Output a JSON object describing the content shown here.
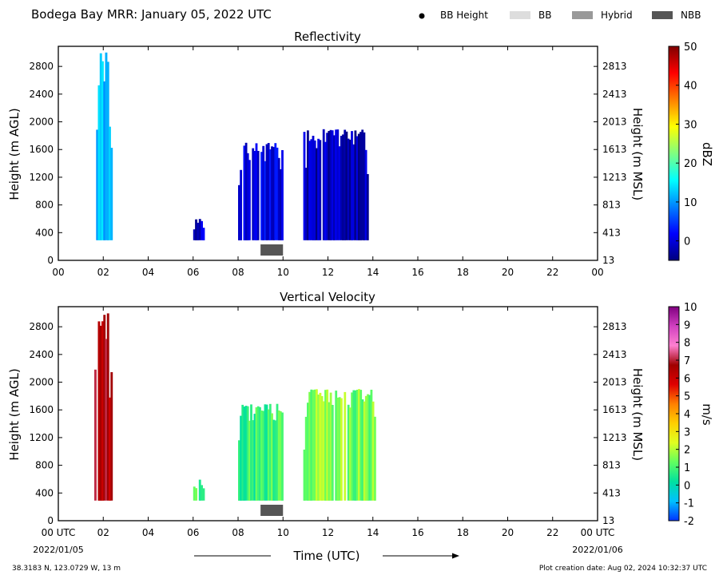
{
  "header": {
    "title": "Bodega Bay MRR:  January 05, 2022 UTC",
    "legend": [
      {
        "label": "BB Height",
        "color": "#000000",
        "kind": "dot"
      },
      {
        "label": "BB",
        "color": "#dddddd",
        "kind": "box"
      },
      {
        "label": "Hybrid",
        "color": "#999999",
        "kind": "box"
      },
      {
        "label": "NBB",
        "color": "#555555",
        "kind": "box"
      }
    ]
  },
  "footer": {
    "location": "38.3183 N, 123.0729 W, 13 m",
    "creation": "Plot creation date: Aug 02, 2024 10:32:37 UTC",
    "time_label": "Time (UTC)",
    "start_date": "2022/01/05",
    "end_date": "2022/01/06"
  },
  "chart_data": [
    {
      "type": "heatmap",
      "title": "Reflectivity",
      "xlabel": "",
      "ylabel": "Height (m AGL)",
      "ylabel_right": "Height (m MSL)",
      "xlim": [
        0,
        24
      ],
      "ylim": [
        0,
        3090
      ],
      "x_ticks": [
        "00",
        "02",
        "04",
        "06",
        "08",
        "10",
        "12",
        "14",
        "16",
        "18",
        "20",
        "22",
        "00"
      ],
      "y_ticks": [
        0,
        400,
        800,
        1200,
        1600,
        2000,
        2400,
        2800
      ],
      "y_ticks_right": [
        "13",
        "413",
        "813",
        "1213",
        "1613",
        "2013",
        "2413",
        "2813"
      ],
      "colorbar": {
        "label": "dBZ",
        "range": [
          -5,
          50
        ],
        "ticks": [
          "0",
          "10",
          "20",
          "30",
          "40",
          "50"
        ],
        "tick_values": [
          0,
          10,
          20,
          30,
          40,
          50
        ],
        "stops": [
          "#00007f",
          "#0000ff",
          "#0080ff",
          "#00ffff",
          "#80ff80",
          "#ffff00",
          "#ff8000",
          "#ff0000",
          "#7f0000"
        ]
      },
      "precip_regions": [
        {
          "x0": 1.6,
          "x1": 2.4,
          "y0": 290,
          "y1": 3000,
          "value": 12
        },
        {
          "x0": 6.0,
          "x1": 6.5,
          "y0": 290,
          "y1": 600,
          "value": -1
        },
        {
          "x0": 8.0,
          "x1": 10.0,
          "y0": 290,
          "y1": 1700,
          "value": 1
        },
        {
          "x0": 10.9,
          "x1": 13.8,
          "y0": 290,
          "y1": 1900,
          "value": -2
        }
      ],
      "bb_type_bars": [
        {
          "x0": 9.0,
          "x1": 10.0,
          "type": "NBB"
        }
      ]
    },
    {
      "type": "heatmap",
      "title": "Vertical Velocity",
      "xlabel": "Time (UTC)",
      "ylabel": "Height (m AGL)",
      "ylabel_right": "Height (m MSL)",
      "xlim": [
        0,
        24
      ],
      "ylim": [
        0,
        3090
      ],
      "x_ticks": [
        "00 UTC",
        "02",
        "04",
        "06",
        "08",
        "10",
        "12",
        "14",
        "16",
        "18",
        "20",
        "22",
        "00 UTC"
      ],
      "y_ticks": [
        0,
        400,
        800,
        1200,
        1600,
        2000,
        2400,
        2800
      ],
      "y_ticks_right": [
        "13",
        "413",
        "813",
        "1213",
        "1613",
        "2013",
        "2413",
        "2813"
      ],
      "colorbar": {
        "label": "m/s",
        "range": [
          -2,
          10
        ],
        "ticks": [
          "-2",
          "-1",
          "0",
          "1",
          "2",
          "3",
          "4",
          "5",
          "6",
          "7",
          "8",
          "9",
          "10"
        ],
        "tick_values": [
          -2,
          -1,
          0,
          1,
          2,
          3,
          4,
          5,
          6,
          7,
          8,
          9,
          10
        ],
        "stops": [
          "#0033ff",
          "#00c0ff",
          "#00e0a0",
          "#60ff60",
          "#e0ff20",
          "#ffd000",
          "#ff8000",
          "#e00000",
          "#a00000",
          "#ff80d0",
          "#d040c0",
          "#800080"
        ]
      },
      "precip_regions": [
        {
          "x0": 1.6,
          "x1": 2.4,
          "y0": 290,
          "y1": 3000,
          "value": 6.5
        },
        {
          "x0": 6.0,
          "x1": 6.5,
          "y0": 290,
          "y1": 600,
          "value": 1
        },
        {
          "x0": 8.0,
          "x1": 10.0,
          "y0": 290,
          "y1": 1700,
          "value": 0.8
        },
        {
          "x0": 10.9,
          "x1": 14.2,
          "y0": 290,
          "y1": 1900,
          "value": 1.5
        }
      ],
      "bb_type_bars": [
        {
          "x0": 9.0,
          "x1": 10.0,
          "type": "NBB"
        }
      ]
    }
  ]
}
